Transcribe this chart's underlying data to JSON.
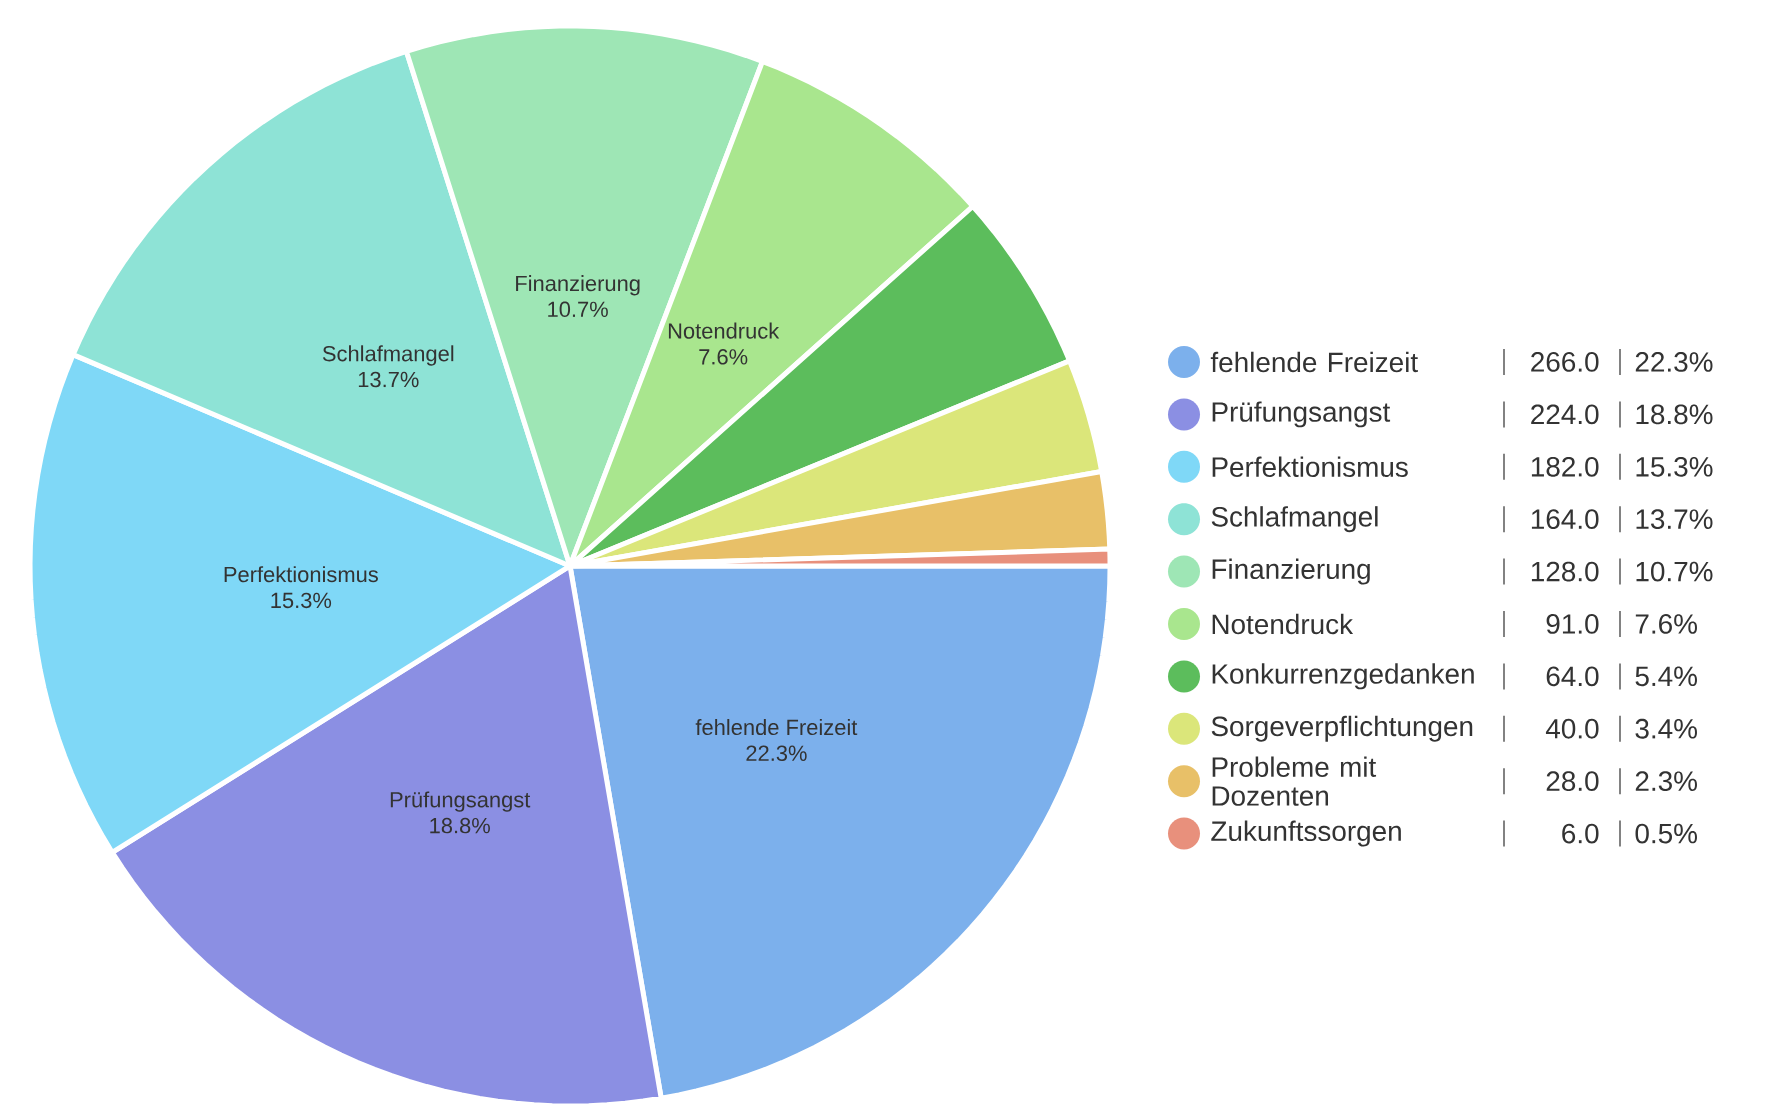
{
  "chart_data": {
    "type": "pie",
    "categories": [
      "fehlende Freizeit",
      "Prüfungsangst",
      "Perfektionismus",
      "Schlafmangel",
      "Finanzierung",
      "Notendruck",
      "Konkurrenzgedanken",
      "Sorgeverpflichtungen",
      "Probleme mit Dozenten",
      "Zukunftssorgen"
    ],
    "values": [
      22.3,
      18.8,
      15.3,
      13.7,
      10.7,
      7.6,
      5.4,
      3.4,
      2.3,
      0.5
    ],
    "value_labels": [
      "22.3%",
      "18.8%",
      "15.3%",
      "13.7%",
      "10.7%",
      "7.6%",
      "5.4%",
      "3.4%",
      "2.3%",
      "0.5%"
    ],
    "annotations": [
      "266.0",
      "224.0",
      "182.0",
      "164.0",
      "128.0",
      "91.0",
      "64.0",
      "40.0",
      "28.0",
      "6.0"
    ],
    "colors": [
      "#7cb0ec",
      "#8b8fe3",
      "#7fd8f7",
      "#8ee3d6",
      "#9ee6b5",
      "#a9e68e",
      "#5cbd5c",
      "#dbe67a",
      "#e8c068",
      "#e8907c"
    ],
    "legend": "right"
  }
}
